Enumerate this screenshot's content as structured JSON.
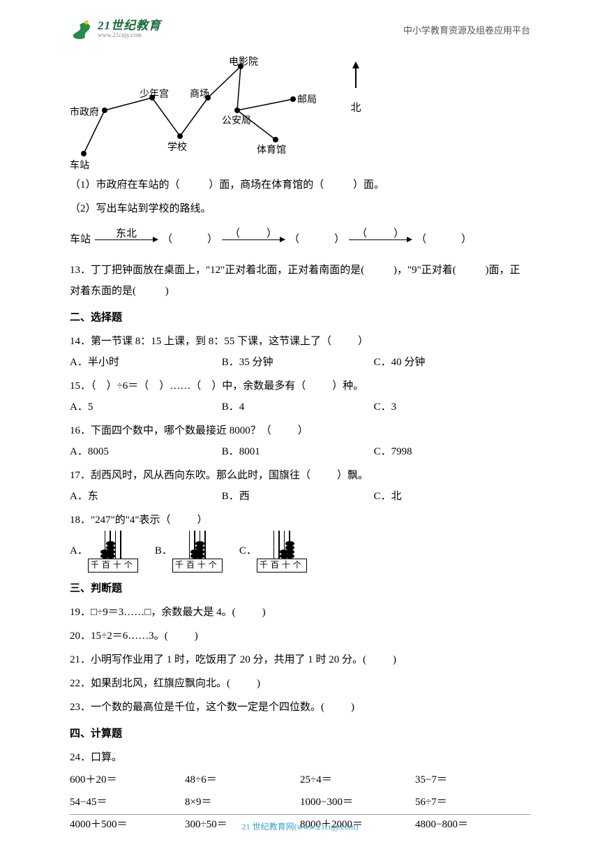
{
  "header": {
    "logo_cn": "21世纪教育",
    "logo_url": "www.21cnjy.com",
    "right_text": "中小学教育资源及组卷应用平台"
  },
  "diagram": {
    "nodes": {
      "chezhan": "车站",
      "shizhengfu": "市政府",
      "shaoniangong": "少年宫",
      "xuexiao": "学校",
      "shangchang": "商场",
      "dianyingyuan": "电影院",
      "gonganju": "公安局",
      "youju": "邮局",
      "tiyuguan": "体育馆"
    },
    "north": "北"
  },
  "q12": {
    "p1_a": "（1）市政府在车站的（",
    "p1_b": "）面，商场在体育馆的（",
    "p1_c": "）面。",
    "p2": "（2）写出车站到学校的路线。",
    "route_start": "车站",
    "route_label1": "东北",
    "rp_open": "（",
    "rp_close": "）"
  },
  "q13": {
    "a": "13．丁丁把钟面放在桌面上，\"12\"正对着北面，正对着南面的是(",
    "b": ")，\"9\"正对着(",
    "c": ")面，正",
    "d": "对着东面的是(",
    "e": ")"
  },
  "sec2": "二、选择题",
  "q14": {
    "stem": "14．第一节课 8：15 上课，到 8：55 下课，这节课上了（",
    "tail": "）",
    "A": "A．半小时",
    "B": "B．35 分钟",
    "C": "C．40 分钟"
  },
  "q15": {
    "stem": "15．（　）÷6＝（　）……（　）中，余数最多有（",
    "tail": "）种。",
    "A": "A．5",
    "B": "B．4",
    "C": "C．3"
  },
  "q16": {
    "stem": "16．下面四个数中，哪个数最接近 8000？（",
    "tail": "）",
    "A": "A．8005",
    "B": "B．8001",
    "C": "C．7998"
  },
  "q17": {
    "stem": "17．刮西风时，风从西向东吹。那么此时，国旗往（",
    "tail": "）飘。",
    "A": "A．东",
    "B": "B．西",
    "C": "C．北"
  },
  "q18": {
    "stem": "18．\"247\"的\"4\"表示（",
    "tail": "）",
    "A": "A．",
    "B": "B．",
    "C": "C．",
    "base": "千百十个",
    "abacus": {
      "A": {
        "rods": [
          2,
          4,
          0,
          0
        ]
      },
      "B": {
        "rods": [
          0,
          2,
          4,
          0
        ]
      },
      "C": {
        "rods": [
          0,
          0,
          2,
          4
        ]
      }
    }
  },
  "sec3": "三、判断题",
  "q19": {
    "a": "19．□÷9＝3……□，余数最大是 4。(",
    "b": ")"
  },
  "q20": {
    "a": "20．15÷2＝6……3。(",
    "b": ")"
  },
  "q21": {
    "a": "21．小明写作业用了 1 时，吃饭用了 20 分，共用了 1 时 20 分。(",
    "b": ")"
  },
  "q22": {
    "a": "22．如果刮北风，红旗应飘向北。(",
    "b": ")"
  },
  "q23": {
    "a": "23．一个数的最高位是千位，这个数一定是个四位数。(",
    "b": ")"
  },
  "sec4": "四、计算题",
  "q24": "24．口算。",
  "calc": {
    "r1": [
      "600＋20＝",
      "48÷6＝",
      "25÷4＝",
      "35−7＝"
    ],
    "r2": [
      "54−45＝",
      "8×9＝",
      "1000−300＝",
      "56÷7＝"
    ],
    "r3": [
      "4000＋500＝",
      "300÷50＝",
      "8000＋2000＝",
      "4800−800＝"
    ]
  },
  "footer": "21 世纪教育网(www.21cnjy.com)"
}
